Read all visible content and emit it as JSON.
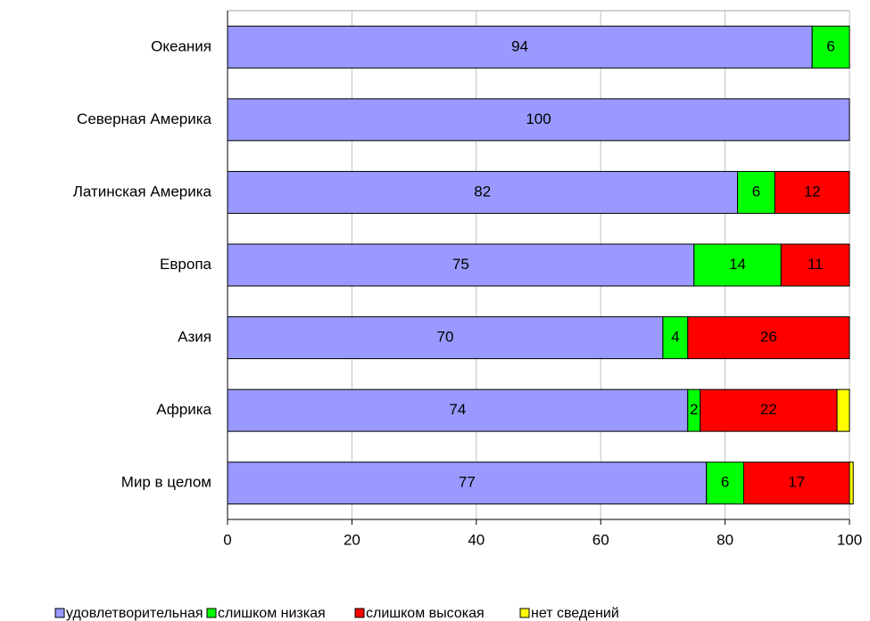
{
  "chart_data": {
    "type": "stacked-bar-horizontal",
    "categories": [
      "Океания",
      "Северная Америка",
      "Латинская Америка",
      "Европа",
      "Азия",
      "Африка",
      "Мир в целом"
    ],
    "series": [
      {
        "name": "удовлетворительная",
        "color": "#9999ff",
        "values": [
          94,
          100,
          82,
          75,
          70,
          74,
          77
        ],
        "show_labels": true
      },
      {
        "name": "слишком низкая",
        "color": "#00ff00",
        "values": [
          6,
          null,
          6,
          14,
          4,
          2,
          6
        ],
        "show_labels": true
      },
      {
        "name": "слишком высокая",
        "color": "#ff0000",
        "values": [
          null,
          null,
          12,
          11,
          26,
          22,
          17
        ],
        "show_labels": true
      },
      {
        "name": "нет сведений",
        "color": "#ffff00",
        "values": [
          null,
          null,
          null,
          null,
          null,
          2,
          0.6
        ],
        "show_labels": false
      }
    ],
    "xlim": [
      0,
      100
    ],
    "xticks": [
      0,
      20,
      40,
      60,
      80,
      100
    ],
    "grid": true,
    "legend": "bottom"
  }
}
